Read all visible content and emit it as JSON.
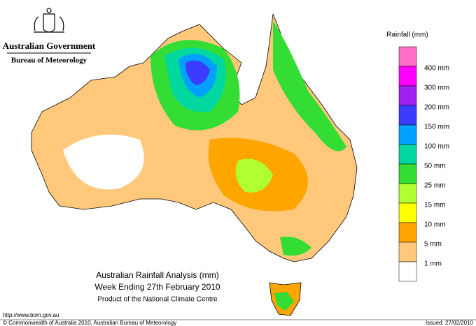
{
  "header": {
    "government": "Australian Government",
    "bureau": "Bureau of Meteorology"
  },
  "legend": {
    "title": "Rainfall (mm)",
    "top_color": "#ff6fc8",
    "items": [
      {
        "label": "400 mm",
        "color": "#ff00ff"
      },
      {
        "label": "300 mm",
        "color": "#a020f0"
      },
      {
        "label": "200 mm",
        "color": "#3c3cff"
      },
      {
        "label": "150 mm",
        "color": "#00a0ff"
      },
      {
        "label": "100 mm",
        "color": "#00d8a0"
      },
      {
        "label": "50 mm",
        "color": "#33dd33"
      },
      {
        "label": "25 mm",
        "color": "#b0ff30"
      },
      {
        "label": "15 mm",
        "color": "#ffff00"
      },
      {
        "label": "10 mm",
        "color": "#ffa500"
      },
      {
        "label": "5 mm",
        "color": "#ffc87a"
      },
      {
        "label": "1 mm",
        "color": "#ffffff"
      }
    ]
  },
  "map_title": {
    "line1": "Australian Rainfall Analysis (mm)",
    "line2": "Week Ending 27th February 2010",
    "line3": "Product of the National Climate Centre"
  },
  "footer": {
    "url": "http://www.bom.gov.au",
    "copyright": "© Commonwealth of Australia 2010, Australian Bureau of Meteorology",
    "issued": "Issued: 27/02/2010"
  }
}
